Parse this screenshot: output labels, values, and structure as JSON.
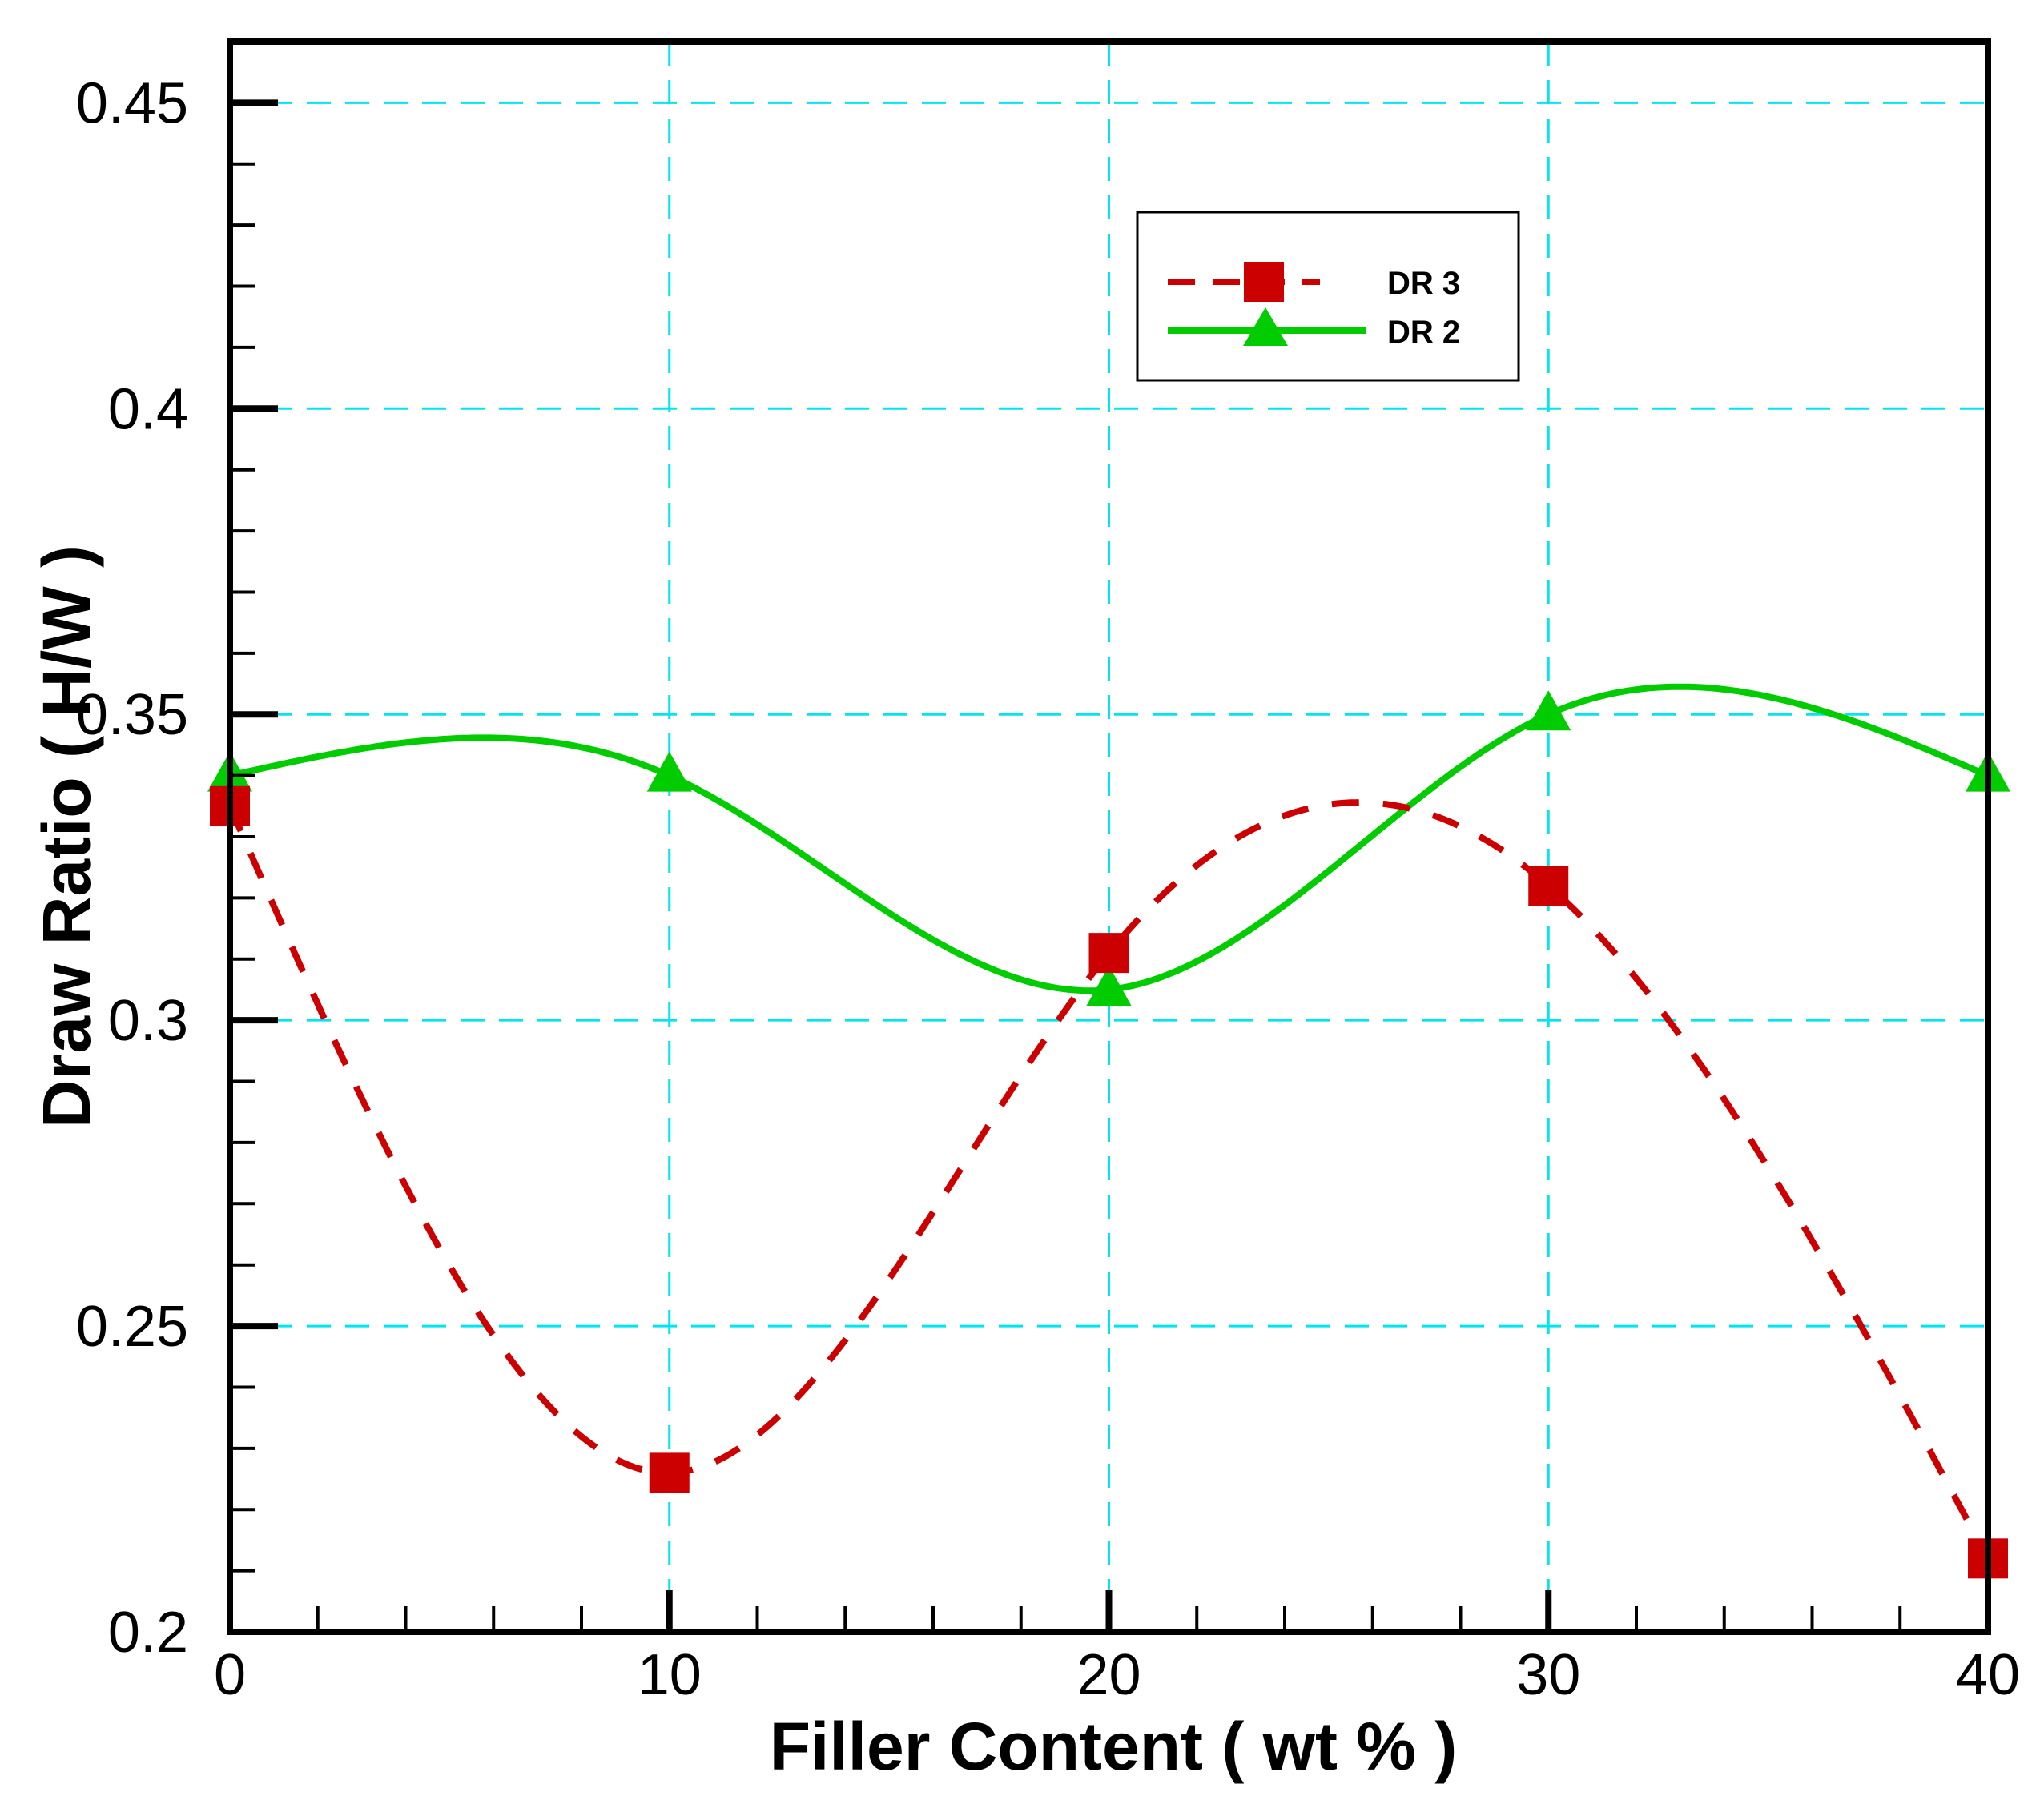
{
  "chart_data": {
    "type": "line",
    "title": "",
    "xlabel": "Filler Content ( wt % )",
    "ylabel": "Draw Ratio ( H/W )",
    "xlim": [
      0,
      40
    ],
    "ylim": [
      0.2,
      0.46
    ],
    "x_ticks": [
      0,
      10,
      20,
      30,
      40
    ],
    "x_tick_labels": [
      "0",
      "10",
      "20",
      "30",
      "40"
    ],
    "y_ticks": [
      0.2,
      0.25,
      0.3,
      0.35,
      0.4,
      0.45
    ],
    "y_tick_labels": [
      "0.2",
      "0.25",
      "0.3",
      "0.35",
      "0.4",
      "0.45"
    ],
    "grid": true,
    "legend_position": "top-right",
    "x": [
      0,
      10,
      20,
      30,
      40
    ],
    "series": [
      {
        "name": "DR 3",
        "values": [
          0.335,
          0.226,
          0.311,
          0.322,
          0.212
        ],
        "color": "#cc0000",
        "line_style": "dashed",
        "marker": "square"
      },
      {
        "name": "DR 2",
        "values": [
          0.34,
          0.34,
          0.305,
          0.35,
          0.34
        ],
        "color": "#00cc00",
        "line_style": "solid",
        "marker": "triangle"
      }
    ],
    "grid_color": "#00e5ee"
  }
}
